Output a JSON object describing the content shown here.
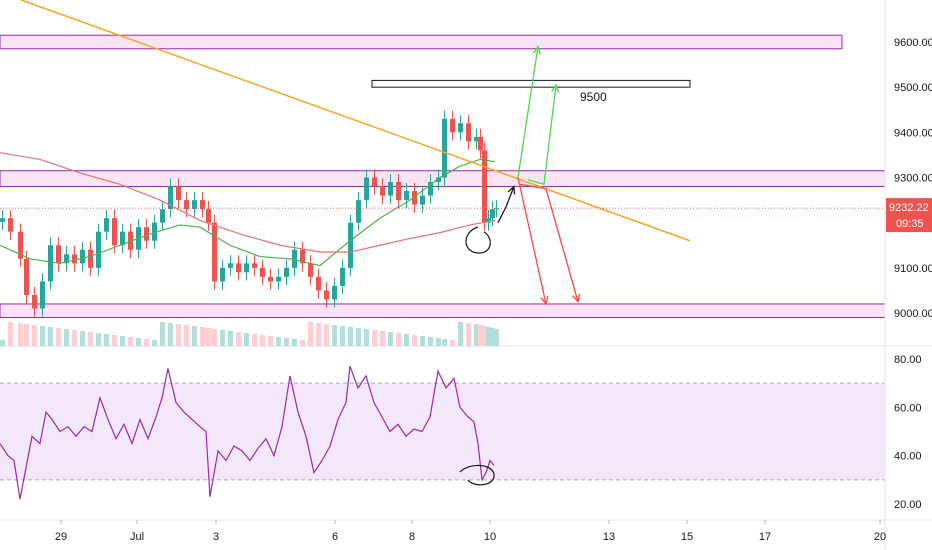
{
  "chart_data": [
    {
      "type": "candlestick",
      "title": "",
      "xlabel": "",
      "ylabel": "",
      "ylim": [
        8930,
        9700
      ],
      "x_tick_labels": [
        "29",
        "Jul",
        "3",
        "6",
        "8",
        "10",
        "13",
        "15",
        "17",
        "20"
      ],
      "y_tick_labels": [
        "9600.00",
        "9500.00",
        "9400.00",
        "9300.00",
        "9100.00",
        "9000.00"
      ],
      "last_price": {
        "value": 9232.22,
        "label": "9232.22",
        "countdown": "09:35",
        "color": "#ef5350"
      },
      "colors": {
        "up": "#26a69a",
        "down": "#ef5350",
        "volume_up": "#b2dfdb",
        "volume_down": "#ffcdd2"
      },
      "close_series": [
        {
          "x": 0,
          "y": 9210
        },
        {
          "x": 8,
          "y": 9180
        },
        {
          "x": 18,
          "y": 9120
        },
        {
          "x": 24,
          "y": 9040
        },
        {
          "x": 32,
          "y": 9010
        },
        {
          "x": 40,
          "y": 9070
        },
        {
          "x": 48,
          "y": 9150
        },
        {
          "x": 56,
          "y": 9110
        },
        {
          "x": 64,
          "y": 9130
        },
        {
          "x": 72,
          "y": 9110
        },
        {
          "x": 80,
          "y": 9140
        },
        {
          "x": 88,
          "y": 9100
        },
        {
          "x": 96,
          "y": 9180
        },
        {
          "x": 104,
          "y": 9210
        },
        {
          "x": 112,
          "y": 9150
        },
        {
          "x": 120,
          "y": 9180
        },
        {
          "x": 128,
          "y": 9140
        },
        {
          "x": 136,
          "y": 9190
        },
        {
          "x": 144,
          "y": 9160
        },
        {
          "x": 152,
          "y": 9200
        },
        {
          "x": 160,
          "y": 9230
        },
        {
          "x": 168,
          "y": 9280
        },
        {
          "x": 176,
          "y": 9250
        },
        {
          "x": 184,
          "y": 9230
        },
        {
          "x": 192,
          "y": 9250
        },
        {
          "x": 200,
          "y": 9230
        },
        {
          "x": 206,
          "y": 9200
        },
        {
          "x": 212,
          "y": 9070
        },
        {
          "x": 220,
          "y": 9100
        },
        {
          "x": 228,
          "y": 9110
        },
        {
          "x": 236,
          "y": 9090
        },
        {
          "x": 244,
          "y": 9110
        },
        {
          "x": 252,
          "y": 9100
        },
        {
          "x": 260,
          "y": 9080
        },
        {
          "x": 268,
          "y": 9070
        },
        {
          "x": 276,
          "y": 9080
        },
        {
          "x": 284,
          "y": 9100
        },
        {
          "x": 292,
          "y": 9140
        },
        {
          "x": 300,
          "y": 9110
        },
        {
          "x": 308,
          "y": 9080
        },
        {
          "x": 316,
          "y": 9050
        },
        {
          "x": 324,
          "y": 9030
        },
        {
          "x": 332,
          "y": 9060
        },
        {
          "x": 340,
          "y": 9100
        },
        {
          "x": 348,
          "y": 9200
        },
        {
          "x": 356,
          "y": 9250
        },
        {
          "x": 364,
          "y": 9300
        },
        {
          "x": 372,
          "y": 9280
        },
        {
          "x": 380,
          "y": 9260
        },
        {
          "x": 388,
          "y": 9290
        },
        {
          "x": 396,
          "y": 9250
        },
        {
          "x": 404,
          "y": 9270
        },
        {
          "x": 412,
          "y": 9240
        },
        {
          "x": 420,
          "y": 9260
        },
        {
          "x": 428,
          "y": 9290
        },
        {
          "x": 436,
          "y": 9300
        },
        {
          "x": 442,
          "y": 9430
        },
        {
          "x": 450,
          "y": 9400
        },
        {
          "x": 458,
          "y": 9420
        },
        {
          "x": 466,
          "y": 9380
        },
        {
          "x": 474,
          "y": 9390
        },
        {
          "x": 478,
          "y": 9360
        },
        {
          "x": 482,
          "y": 9200
        },
        {
          "x": 486,
          "y": 9210
        },
        {
          "x": 490,
          "y": 9230
        },
        {
          "x": 494,
          "y": 9232
        }
      ],
      "sma_series": [
        {
          "x": 0,
          "y": 9150
        },
        {
          "x": 30,
          "y": 9120
        },
        {
          "x": 60,
          "y": 9110
        },
        {
          "x": 90,
          "y": 9125
        },
        {
          "x": 120,
          "y": 9150
        },
        {
          "x": 150,
          "y": 9175
        },
        {
          "x": 180,
          "y": 9195
        },
        {
          "x": 200,
          "y": 9190
        },
        {
          "x": 230,
          "y": 9150
        },
        {
          "x": 260,
          "y": 9125
        },
        {
          "x": 290,
          "y": 9120
        },
        {
          "x": 320,
          "y": 9105
        },
        {
          "x": 350,
          "y": 9160
        },
        {
          "x": 380,
          "y": 9210
        },
        {
          "x": 410,
          "y": 9250
        },
        {
          "x": 440,
          "y": 9300
        },
        {
          "x": 460,
          "y": 9325
        },
        {
          "x": 480,
          "y": 9340
        },
        {
          "x": 495,
          "y": 9335
        }
      ],
      "ema_series": [
        {
          "x": 0,
          "y": 9355
        },
        {
          "x": 40,
          "y": 9340
        },
        {
          "x": 80,
          "y": 9310
        },
        {
          "x": 120,
          "y": 9285
        },
        {
          "x": 160,
          "y": 9250
        },
        {
          "x": 200,
          "y": 9205
        },
        {
          "x": 240,
          "y": 9175
        },
        {
          "x": 280,
          "y": 9150
        },
        {
          "x": 320,
          "y": 9135
        },
        {
          "x": 350,
          "y": 9135
        },
        {
          "x": 380,
          "y": 9150
        },
        {
          "x": 410,
          "y": 9165
        },
        {
          "x": 440,
          "y": 9178
        },
        {
          "x": 470,
          "y": 9195
        },
        {
          "x": 495,
          "y": 9205
        }
      ],
      "trendline": {
        "start": {
          "x": 0,
          "y": 9710
        },
        "end": {
          "x": 690,
          "y": 9160
        },
        "color": "#f5a623"
      },
      "zones": [
        {
          "from": 9585,
          "to": 9615,
          "x_end": 842
        },
        {
          "from": 9280,
          "to": 9315,
          "x_end": 885
        },
        {
          "from": 8990,
          "to": 9020,
          "x_end": 885
        }
      ],
      "target_box": {
        "label": "9500",
        "from": 9500,
        "to": 9515,
        "x_start": 372,
        "x_end": 690
      },
      "projections": [
        {
          "color": "#4cd94c",
          "points": [
            {
              "x": 518,
              "y": 9300
            },
            {
              "x": 538,
              "y": 9590
            }
          ]
        },
        {
          "color": "#4cd94c",
          "points": [
            {
              "x": 528,
              "y": 9295
            },
            {
              "x": 544,
              "y": 9285
            },
            {
              "x": 556,
              "y": 9505
            }
          ]
        },
        {
          "color": "#ff4444",
          "points": [
            {
              "x": 518,
              "y": 9300
            },
            {
              "x": 546,
              "y": 9020
            }
          ]
        },
        {
          "color": "#ff4444",
          "points": [
            {
              "x": 520,
              "y": 9285
            },
            {
              "x": 546,
              "y": 9275
            },
            {
              "x": 578,
              "y": 9025
            }
          ]
        },
        {
          "color": "#131722",
          "points": [
            {
              "x": 498,
              "y": 9200
            },
            {
              "x": 506,
              "y": 9235
            },
            {
              "x": 514,
              "y": 9280
            }
          ]
        }
      ]
    },
    {
      "type": "line",
      "title": "",
      "ylim": [
        16,
        82
      ],
      "y_tick_labels": [
        "80.00",
        "60.00",
        "40.00",
        "20.00"
      ],
      "bands": [
        {
          "value": 70
        },
        {
          "value": 30
        }
      ],
      "series_color": "#9c27b0",
      "rsi_series": [
        {
          "x": 0,
          "y": 45
        },
        {
          "x": 8,
          "y": 40
        },
        {
          "x": 14,
          "y": 38
        },
        {
          "x": 20,
          "y": 22
        },
        {
          "x": 26,
          "y": 35
        },
        {
          "x": 32,
          "y": 48
        },
        {
          "x": 40,
          "y": 45
        },
        {
          "x": 46,
          "y": 58
        },
        {
          "x": 52,
          "y": 55
        },
        {
          "x": 60,
          "y": 50
        },
        {
          "x": 68,
          "y": 52
        },
        {
          "x": 76,
          "y": 48
        },
        {
          "x": 84,
          "y": 52
        },
        {
          "x": 92,
          "y": 50
        },
        {
          "x": 100,
          "y": 64
        },
        {
          "x": 108,
          "y": 55
        },
        {
          "x": 116,
          "y": 47
        },
        {
          "x": 124,
          "y": 53
        },
        {
          "x": 132,
          "y": 45
        },
        {
          "x": 140,
          "y": 55
        },
        {
          "x": 148,
          "y": 47
        },
        {
          "x": 156,
          "y": 56
        },
        {
          "x": 162,
          "y": 64
        },
        {
          "x": 168,
          "y": 76
        },
        {
          "x": 176,
          "y": 62
        },
        {
          "x": 184,
          "y": 58
        },
        {
          "x": 192,
          "y": 55
        },
        {
          "x": 200,
          "y": 52
        },
        {
          "x": 206,
          "y": 50
        },
        {
          "x": 210,
          "y": 23
        },
        {
          "x": 218,
          "y": 42
        },
        {
          "x": 226,
          "y": 38
        },
        {
          "x": 234,
          "y": 44
        },
        {
          "x": 242,
          "y": 42
        },
        {
          "x": 250,
          "y": 38
        },
        {
          "x": 258,
          "y": 43
        },
        {
          "x": 266,
          "y": 47
        },
        {
          "x": 274,
          "y": 40
        },
        {
          "x": 282,
          "y": 52
        },
        {
          "x": 290,
          "y": 73
        },
        {
          "x": 298,
          "y": 58
        },
        {
          "x": 306,
          "y": 48
        },
        {
          "x": 314,
          "y": 33
        },
        {
          "x": 322,
          "y": 38
        },
        {
          "x": 330,
          "y": 44
        },
        {
          "x": 338,
          "y": 55
        },
        {
          "x": 346,
          "y": 62
        },
        {
          "x": 350,
          "y": 77
        },
        {
          "x": 358,
          "y": 68
        },
        {
          "x": 366,
          "y": 73
        },
        {
          "x": 374,
          "y": 62
        },
        {
          "x": 382,
          "y": 56
        },
        {
          "x": 390,
          "y": 50
        },
        {
          "x": 398,
          "y": 53
        },
        {
          "x": 406,
          "y": 48
        },
        {
          "x": 414,
          "y": 51
        },
        {
          "x": 422,
          "y": 50
        },
        {
          "x": 430,
          "y": 56
        },
        {
          "x": 438,
          "y": 75
        },
        {
          "x": 446,
          "y": 68
        },
        {
          "x": 454,
          "y": 72
        },
        {
          "x": 460,
          "y": 60
        },
        {
          "x": 468,
          "y": 56
        },
        {
          "x": 474,
          "y": 54
        },
        {
          "x": 478,
          "y": 45
        },
        {
          "x": 482,
          "y": 30
        },
        {
          "x": 486,
          "y": 33
        },
        {
          "x": 490,
          "y": 38
        },
        {
          "x": 494,
          "y": 36
        }
      ]
    }
  ]
}
